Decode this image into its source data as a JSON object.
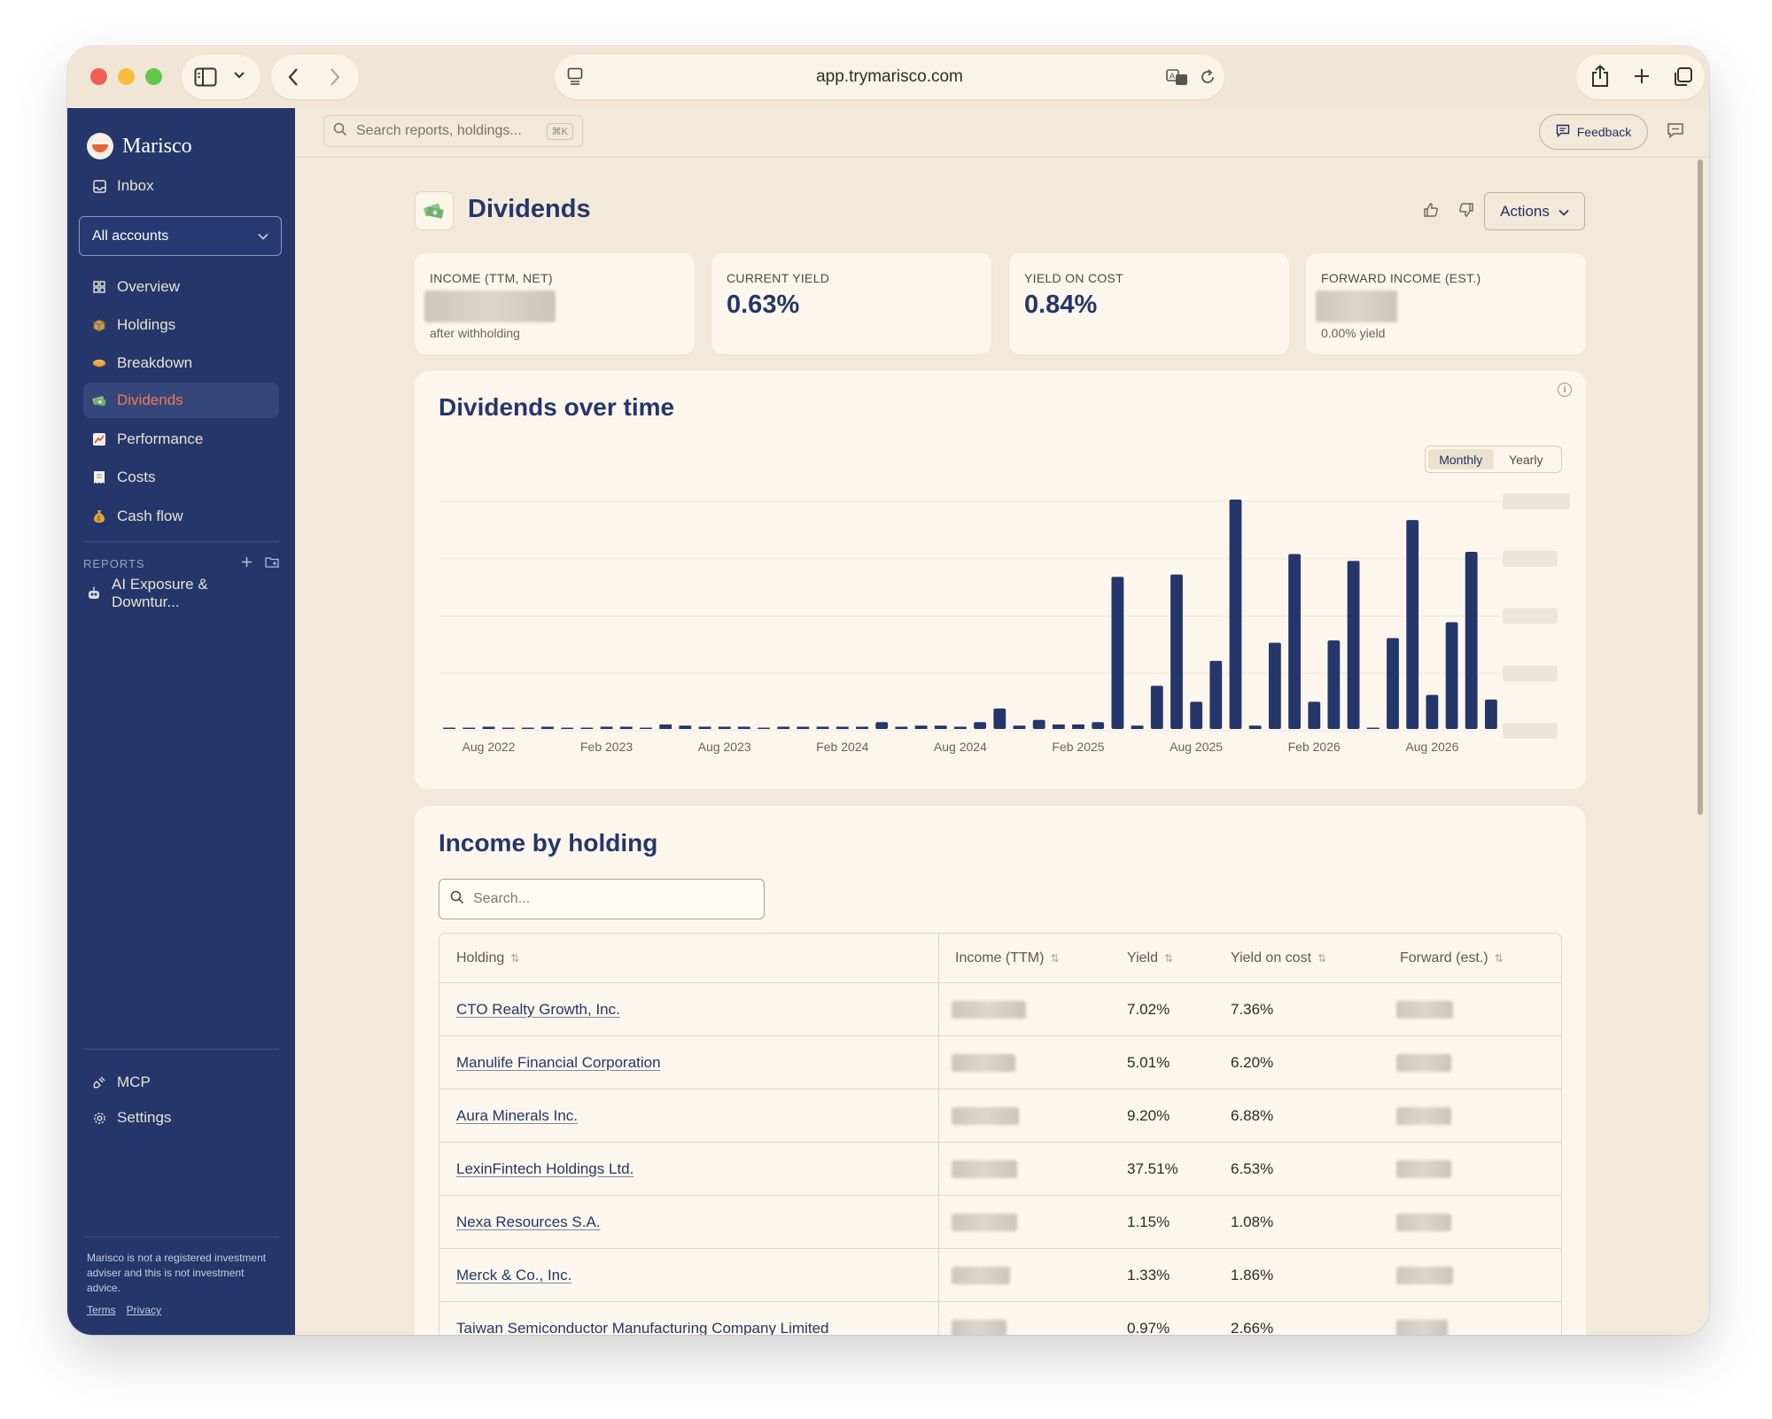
{
  "browser": {
    "url": "app.trymarisco.com"
  },
  "sidebar": {
    "brand": "Marisco",
    "inbox": "Inbox",
    "account_selector": "All accounts",
    "nav": [
      {
        "label": "Overview",
        "icon": "grid-icon"
      },
      {
        "label": "Holdings",
        "icon": "package-icon"
      },
      {
        "label": "Breakdown",
        "icon": "pie-icon"
      },
      {
        "label": "Dividends",
        "icon": "money-icon",
        "active": true
      },
      {
        "label": "Performance",
        "icon": "trend-chart-icon"
      },
      {
        "label": "Costs",
        "icon": "receipt-icon"
      },
      {
        "label": "Cash flow",
        "icon": "money-bag-icon"
      }
    ],
    "reports_heading": "REPORTS",
    "reports": [
      {
        "label": "AI Exposure & Downtur...",
        "icon": "robot-icon"
      }
    ],
    "mcp": "MCP",
    "settings": "Settings",
    "disclaimer": "Marisco is not a registered investment adviser and this is not investment advice.",
    "terms": "Terms",
    "privacy": "Privacy"
  },
  "topbar": {
    "search_placeholder": "Search reports, holdings...",
    "search_shortcut": "⌘K",
    "feedback": "Feedback"
  },
  "page": {
    "title": "Dividends",
    "actions": "Actions"
  },
  "kpis": [
    {
      "label": "INCOME (TTM, NET)",
      "value": "",
      "sub": "after withholding",
      "value_hidden": true
    },
    {
      "label": "CURRENT YIELD",
      "value": "0.63%",
      "sub": ""
    },
    {
      "label": "YIELD ON COST",
      "value": "0.84%",
      "sub": ""
    },
    {
      "label": "FORWARD INCOME (EST.)",
      "value": "",
      "sub": "0.00% yield",
      "value_hidden": true
    }
  ],
  "dividends_chart": {
    "title": "Dividends over time",
    "toggle": {
      "monthly": "Monthly",
      "yearly": "Yearly",
      "selected": "Monthly"
    },
    "bar_color": "#24366a"
  },
  "chart_data": {
    "type": "bar",
    "title": "Dividends over time",
    "xlabel": "",
    "ylabel": "",
    "x_tick_labels": [
      "Aug 2022",
      "Feb 2023",
      "Aug 2023",
      "Feb 2024",
      "Aug 2024",
      "Feb 2025",
      "Aug 2025",
      "Feb 2026",
      "Aug 2026"
    ],
    "y_tick_labels_hidden": true,
    "values_relative": [
      0.5,
      0.5,
      1,
      0.5,
      0.5,
      1,
      0.5,
      0.5,
      1,
      1,
      0.5,
      2,
      1.5,
      1,
      1,
      1,
      0.5,
      1,
      1,
      1,
      1,
      1,
      3,
      1,
      1.5,
      1.5,
      1,
      3,
      9,
      1.5,
      4,
      2,
      2,
      3,
      67,
      1.5,
      19,
      68,
      12,
      30,
      101,
      1.5,
      38,
      77,
      12,
      39,
      74,
      0.5,
      40,
      92,
      15,
      47,
      78,
      13
    ],
    "ylim": [
      0,
      101
    ],
    "grid": true
  },
  "income_table": {
    "title": "Income by holding",
    "search_placeholder": "Search...",
    "columns": [
      "Holding",
      "Income (TTM)",
      "Yield",
      "Yield on cost",
      "Forward (est.)"
    ],
    "rows": [
      {
        "holding": "CTO Realty Growth, Inc.",
        "yield": "7.02%",
        "yoc": "7.36%"
      },
      {
        "holding": "Manulife Financial Corporation",
        "yield": "5.01%",
        "yoc": "6.20%"
      },
      {
        "holding": "Aura Minerals Inc.",
        "yield": "9.20%",
        "yoc": "6.88%"
      },
      {
        "holding": "LexinFintech Holdings Ltd.",
        "yield": "37.51%",
        "yoc": "6.53%"
      },
      {
        "holding": "Nexa Resources S.A.",
        "yield": "1.15%",
        "yoc": "1.08%"
      },
      {
        "holding": "Merck & Co., Inc.",
        "yield": "1.33%",
        "yoc": "1.86%"
      },
      {
        "holding": "Taiwan Semiconductor Manufacturing Company Limited",
        "yield": "0.97%",
        "yoc": "2.66%"
      }
    ]
  }
}
